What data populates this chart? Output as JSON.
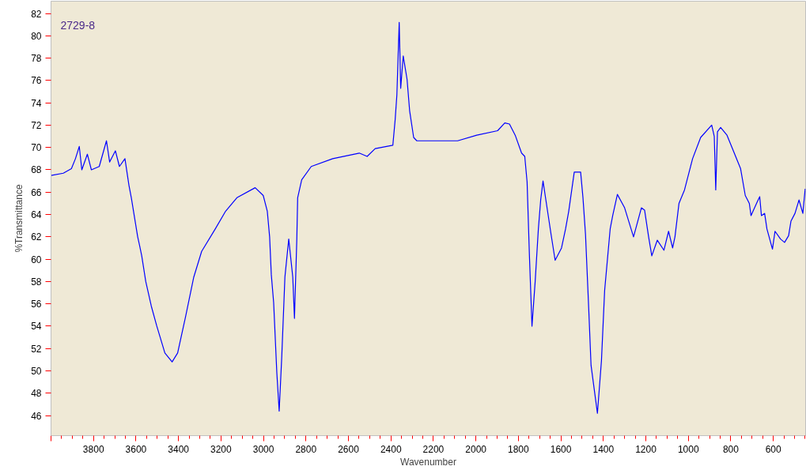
{
  "chart_data": {
    "type": "line",
    "xlabel": "Wavenumber",
    "ylabel": "%Transmittance",
    "annotations": [
      "2729-8"
    ],
    "xlim": [
      4000,
      448
    ],
    "ylim": [
      44.2,
      83.1
    ],
    "xticks": [
      {
        "value": 4000,
        "label": null
      },
      3800,
      3600,
      3400,
      3200,
      3000,
      2800,
      2600,
      2400,
      2200,
      2000,
      1800,
      1600,
      1400,
      1200,
      1000,
      800,
      600
    ],
    "yticks": [
      46,
      48,
      50,
      52,
      54,
      56,
      58,
      60,
      62,
      64,
      66,
      68,
      70,
      72,
      74,
      76,
      78,
      80,
      82
    ],
    "grid": false,
    "marker": "none",
    "line_style": "solid",
    "series": [
      {
        "color": "#0000ff",
        "x": [
          4000,
          3942,
          3904,
          3885,
          3867,
          3855,
          3829,
          3810,
          3773,
          3739,
          3724,
          3697,
          3678,
          3652,
          3641,
          3633,
          3622,
          3592,
          3584,
          3573,
          3554,
          3528,
          3502,
          3464,
          3430,
          3404,
          3366,
          3328,
          3291,
          3227,
          3178,
          3125,
          3039,
          3001,
          2982,
          2971,
          2963,
          2952,
          2937,
          2926,
          2914,
          2899,
          2881,
          2862,
          2854,
          2843,
          2839,
          2820,
          2775,
          2674,
          2549,
          2512,
          2474,
          2391,
          2380,
          2372,
          2361,
          2354,
          2342,
          2324,
          2312,
          2293,
          2278,
          2211,
          2086,
          1996,
          1898,
          1864,
          1842,
          1815,
          1785,
          1770,
          1759,
          1748,
          1736,
          1721,
          1706,
          1695,
          1684,
          1669,
          1646,
          1627,
          1597,
          1578,
          1563,
          1537,
          1522,
          1507,
          1496,
          1484,
          1469,
          1458,
          1428,
          1409,
          1394,
          1368,
          1356,
          1334,
          1300,
          1258,
          1221,
          1206,
          1187,
          1172,
          1146,
          1115,
          1093,
          1074,
          1063,
          1044,
          1018,
          980,
          942,
          890,
          878,
          871,
          863,
          848,
          818,
          788,
          754,
          732,
          713,
          705,
          679,
          664,
          656,
          641,
          630,
          604,
          592,
          566,
          547,
          528,
          517,
          498,
          479,
          461,
          450
        ],
        "values": [
          67.5,
          67.7,
          68.1,
          69.0,
          70.1,
          68.0,
          69.4,
          68.0,
          68.3,
          70.6,
          68.7,
          69.7,
          68.3,
          69.0,
          67.6,
          66.6,
          65.5,
          62.0,
          61.3,
          60.3,
          58.0,
          55.8,
          54.0,
          51.6,
          50.8,
          51.6,
          54.9,
          58.4,
          60.7,
          62.7,
          64.3,
          65.5,
          66.4,
          65.7,
          64.3,
          62.0,
          58.6,
          56.1,
          49.8,
          46.4,
          51.2,
          58.4,
          61.8,
          58.4,
          54.7,
          61.8,
          65.5,
          67.1,
          68.3,
          69.0,
          69.5,
          69.2,
          69.9,
          70.2,
          72.5,
          74.7,
          81.2,
          75.3,
          78.2,
          76.1,
          73.3,
          70.9,
          70.6,
          70.6,
          70.6,
          71.1,
          71.5,
          72.2,
          72.1,
          71.1,
          69.5,
          69.2,
          66.9,
          60.3,
          54.0,
          58.0,
          62.7,
          65.3,
          67.0,
          65.1,
          62.2,
          59.9,
          61.0,
          62.7,
          64.3,
          67.8,
          67.8,
          67.8,
          65.5,
          62.2,
          55.6,
          50.5,
          46.2,
          50.9,
          57.2,
          62.7,
          63.9,
          65.8,
          64.6,
          62.0,
          64.6,
          64.4,
          62.0,
          60.3,
          61.7,
          60.8,
          62.5,
          61.0,
          62.0,
          65.0,
          66.2,
          69.0,
          70.9,
          72.0,
          71.0,
          66.2,
          71.4,
          71.8,
          71.1,
          69.7,
          68.1,
          65.7,
          65.0,
          63.9,
          65.0,
          65.6,
          63.9,
          64.1,
          62.7,
          60.9,
          62.5,
          61.8,
          61.5,
          62.1,
          63.4,
          64.1,
          65.3,
          64.1,
          66.3
        ]
      }
    ]
  }
}
